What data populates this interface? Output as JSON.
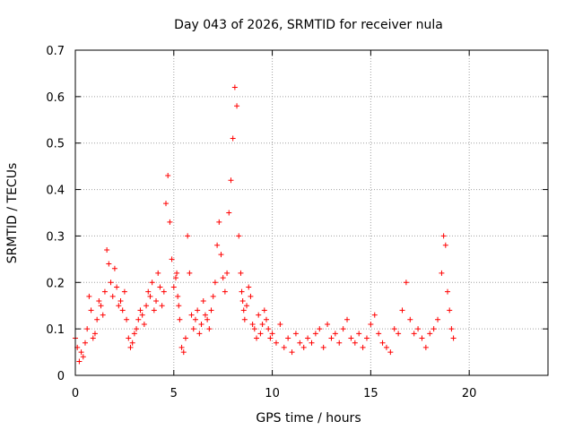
{
  "chart_data": {
    "type": "scatter",
    "title": "Day 043 of 2026, SRMTID for receiver nula",
    "xlabel": "GPS time / hours",
    "ylabel": "SRMTID / TECUs",
    "xlim": [
      0,
      24
    ],
    "ylim": [
      0,
      0.7
    ],
    "x_ticks": [
      0,
      5,
      10,
      15,
      20
    ],
    "x_tick_labels": [
      "0",
      "5",
      "10",
      "15",
      "20"
    ],
    "y_ticks": [
      0,
      0.1,
      0.2,
      0.3,
      0.4,
      0.5,
      0.6,
      0.7
    ],
    "y_tick_labels": [
      "0",
      "0.1",
      "0.2",
      "0.3",
      "0.4",
      "0.5",
      "0.6",
      "0.7"
    ],
    "grid": true,
    "marker": "plus",
    "marker_color": "#ff0000",
    "series": [
      {
        "name": "SRMTID",
        "x": [
          0.0,
          0.1,
          0.2,
          0.3,
          0.4,
          0.5,
          0.6,
          0.7,
          0.8,
          0.9,
          1.0,
          1.1,
          1.2,
          1.3,
          1.4,
          1.5,
          1.6,
          1.7,
          1.8,
          1.9,
          2.0,
          2.1,
          2.2,
          2.3,
          2.4,
          2.5,
          2.6,
          2.7,
          2.8,
          2.9,
          3.0,
          3.1,
          3.2,
          3.3,
          3.4,
          3.5,
          3.6,
          3.7,
          3.8,
          3.9,
          4.0,
          4.1,
          4.2,
          4.3,
          4.4,
          4.5,
          4.6,
          4.7,
          4.8,
          4.9,
          5.0,
          5.1,
          5.15,
          5.2,
          5.25,
          5.3,
          5.4,
          5.5,
          5.6,
          5.7,
          5.8,
          5.9,
          6.0,
          6.1,
          6.2,
          6.3,
          6.4,
          6.5,
          6.6,
          6.7,
          6.8,
          6.9,
          7.0,
          7.1,
          7.2,
          7.3,
          7.4,
          7.5,
          7.6,
          7.7,
          7.8,
          7.9,
          8.0,
          8.1,
          8.2,
          8.3,
          8.4,
          8.45,
          8.5,
          8.55,
          8.6,
          8.7,
          8.8,
          8.9,
          9.0,
          9.1,
          9.2,
          9.3,
          9.4,
          9.5,
          9.6,
          9.7,
          9.8,
          9.9,
          10.0,
          10.2,
          10.4,
          10.6,
          10.8,
          11.0,
          11.2,
          11.4,
          11.6,
          11.8,
          12.0,
          12.2,
          12.4,
          12.6,
          12.8,
          13.0,
          13.2,
          13.4,
          13.6,
          13.8,
          14.0,
          14.2,
          14.4,
          14.6,
          14.8,
          15.0,
          15.2,
          15.4,
          15.6,
          15.8,
          16.0,
          16.2,
          16.4,
          16.6,
          16.8,
          17.0,
          17.2,
          17.4,
          17.6,
          17.8,
          18.0,
          18.2,
          18.4,
          18.6,
          18.7,
          18.8,
          18.9,
          19.0,
          19.1,
          19.2
        ],
        "y": [
          0.08,
          0.06,
          0.03,
          0.05,
          0.04,
          0.07,
          0.1,
          0.17,
          0.14,
          0.08,
          0.09,
          0.12,
          0.16,
          0.15,
          0.13,
          0.18,
          0.27,
          0.24,
          0.2,
          0.17,
          0.23,
          0.19,
          0.15,
          0.16,
          0.14,
          0.18,
          0.12,
          0.08,
          0.06,
          0.07,
          0.09,
          0.1,
          0.12,
          0.14,
          0.13,
          0.11,
          0.15,
          0.18,
          0.17,
          0.2,
          0.14,
          0.16,
          0.22,
          0.19,
          0.15,
          0.18,
          0.37,
          0.43,
          0.33,
          0.25,
          0.19,
          0.21,
          0.22,
          0.17,
          0.15,
          0.12,
          0.06,
          0.05,
          0.08,
          0.3,
          0.22,
          0.13,
          0.1,
          0.12,
          0.14,
          0.09,
          0.11,
          0.16,
          0.13,
          0.12,
          0.1,
          0.14,
          0.17,
          0.2,
          0.28,
          0.33,
          0.26,
          0.21,
          0.18,
          0.22,
          0.35,
          0.42,
          0.51,
          0.62,
          0.58,
          0.3,
          0.22,
          0.18,
          0.16,
          0.14,
          0.12,
          0.15,
          0.19,
          0.17,
          0.11,
          0.1,
          0.08,
          0.13,
          0.09,
          0.11,
          0.14,
          0.12,
          0.1,
          0.08,
          0.09,
          0.07,
          0.11,
          0.06,
          0.08,
          0.05,
          0.09,
          0.07,
          0.06,
          0.08,
          0.07,
          0.09,
          0.1,
          0.06,
          0.11,
          0.08,
          0.09,
          0.07,
          0.1,
          0.12,
          0.08,
          0.07,
          0.09,
          0.06,
          0.08,
          0.11,
          0.13,
          0.09,
          0.07,
          0.06,
          0.05,
          0.1,
          0.09,
          0.14,
          0.2,
          0.12,
          0.09,
          0.1,
          0.08,
          0.06,
          0.09,
          0.1,
          0.12,
          0.22,
          0.3,
          0.28,
          0.18,
          0.14,
          0.1,
          0.08
        ]
      }
    ]
  }
}
